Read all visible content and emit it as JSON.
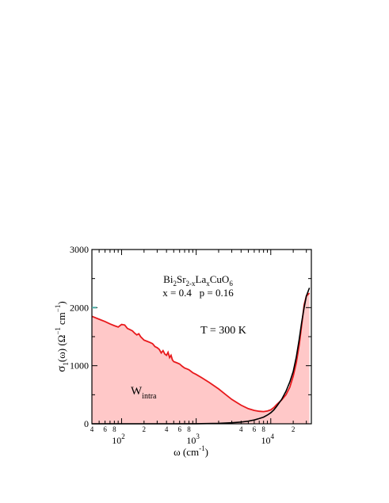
{
  "chart_data": {
    "type": "area",
    "x_scale": "log",
    "xlim": [
      40,
      35000
    ],
    "ylim": [
      0,
      3000
    ],
    "xlabel": "ω (cm",
    "xlabel_sup": "-1",
    "xlabel_close": ")",
    "ylabel_sigma": "σ",
    "ylabel_sub": "1",
    "ylabel_rest": "(ω) (Ω",
    "ylabel_sup1": "−1",
    "ylabel_cm": "cm",
    "ylabel_sup2": "−1",
    "ylabel_close": ")",
    "y_ticks": [
      {
        "value": 0,
        "label": "0"
      },
      {
        "value": 1000,
        "label": "1000"
      },
      {
        "value": 2000,
        "label": "2000"
      },
      {
        "value": 3000,
        "label": "3000"
      }
    ],
    "x_major_ticks": [
      {
        "value": 100,
        "base": "10",
        "exp": "2"
      },
      {
        "value": 1000,
        "base": "10",
        "exp": "3"
      },
      {
        "value": 10000,
        "base": "10",
        "exp": "4"
      }
    ],
    "x_minor_labels": [
      {
        "value": 40,
        "label": "4"
      },
      {
        "value": 60,
        "label": "6"
      },
      {
        "value": 80,
        "label": "8"
      },
      {
        "value": 200,
        "label": "2"
      },
      {
        "value": 400,
        "label": "4"
      },
      {
        "value": 600,
        "label": "6"
      },
      {
        "value": 800,
        "label": "8"
      },
      {
        "value": 4000,
        "label": "4"
      },
      {
        "value": 6000,
        "label": "6"
      },
      {
        "value": 8000,
        "label": "8"
      },
      {
        "value": 20000,
        "label": "2"
      }
    ],
    "compound": {
      "parts": [
        {
          "t": "Bi",
          "s": ""
        },
        {
          "t": "2",
          "s": "sub"
        },
        {
          "t": "Sr",
          "s": ""
        },
        {
          "t": "2-x",
          "s": "sub"
        },
        {
          "t": "La",
          "s": ""
        },
        {
          "t": "x",
          "s": "sub"
        },
        {
          "t": "CuO",
          "s": ""
        },
        {
          "t": "6",
          "s": "sub"
        }
      ]
    },
    "doping_text": "x = 0.4   p = 0.16",
    "temperature_text": "T = 300 K",
    "area_label_main": "W",
    "area_label_sub": "intra",
    "colors": {
      "measured": "#e8191c",
      "fill": "#ffc8c8",
      "model": "#000000",
      "axis": "#000000",
      "marker": "#4aa8a0"
    },
    "series": [
      {
        "style": "measured",
        "x": [
          40,
          50,
          60,
          70,
          80,
          90,
          95,
          100,
          110,
          120,
          130,
          140,
          150,
          160,
          170,
          180,
          190,
          200,
          220,
          240,
          260,
          280,
          300,
          320,
          340,
          360,
          380,
          400,
          420,
          440,
          460,
          480,
          500,
          550,
          600,
          650,
          700,
          750,
          800,
          900,
          1000,
          1200,
          1500,
          2000,
          2500,
          3000,
          4000,
          5000,
          6000,
          7000,
          8000,
          9000,
          10000,
          11000,
          12000,
          14000,
          16000,
          18000,
          20000,
          22000,
          24000,
          26000,
          28000,
          30000,
          33000
        ],
        "y": [
          1850,
          1800,
          1760,
          1720,
          1690,
          1665,
          1690,
          1710,
          1700,
          1640,
          1620,
          1600,
          1560,
          1530,
          1550,
          1500,
          1470,
          1440,
          1420,
          1400,
          1380,
          1330,
          1310,
          1280,
          1220,
          1260,
          1200,
          1180,
          1230,
          1140,
          1180,
          1100,
          1070,
          1050,
          1030,
          990,
          960,
          945,
          930,
          880,
          850,
          790,
          710,
          600,
          500,
          420,
          320,
          260,
          230,
          215,
          210,
          220,
          240,
          280,
          330,
          410,
          500,
          630,
          820,
          1050,
          1350,
          1700,
          2050,
          2200,
          2250
        ]
      },
      {
        "style": "model",
        "x": [
          40,
          500,
          1000,
          2000,
          3000,
          4000,
          5000,
          6000,
          7000,
          8000,
          9000,
          10000,
          11000,
          12000,
          14000,
          16000,
          18000,
          20000,
          22000,
          24000,
          26000,
          28000,
          30000,
          33000
        ],
        "y": [
          0,
          0,
          2,
          8,
          18,
          30,
          45,
          65,
          90,
          115,
          150,
          190,
          240,
          300,
          420,
          560,
          720,
          900,
          1150,
          1450,
          1750,
          2000,
          2200,
          2340
        ]
      }
    ]
  }
}
